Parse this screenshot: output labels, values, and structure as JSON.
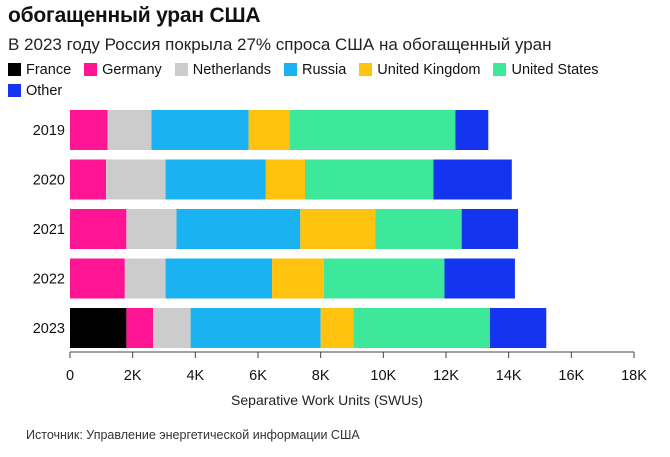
{
  "header": {
    "title": "обогащенный уран США",
    "subtitle": "В 2023 году Россия покрыла 27% спроса США на обогащенный уран"
  },
  "source": "Источник: Управление энергетической информации США",
  "chart_data": {
    "type": "bar",
    "orientation": "horizontal",
    "stacked": true,
    "categories": [
      "2019",
      "2020",
      "2021",
      "2022",
      "2023"
    ],
    "series": [
      {
        "name": "France",
        "color": "#000000",
        "values": [
          0,
          0,
          0,
          0,
          1800
        ]
      },
      {
        "name": "Germany",
        "color": "#ff1493",
        "values": [
          1200,
          1150,
          1800,
          1750,
          850
        ]
      },
      {
        "name": "Netherlands",
        "color": "#cccccc",
        "values": [
          1400,
          1900,
          1600,
          1300,
          1200
        ]
      },
      {
        "name": "Russia",
        "color": "#1ab2f0",
        "values": [
          3100,
          3200,
          3950,
          3400,
          4150
        ]
      },
      {
        "name": "United Kingdom",
        "color": "#ffc20e",
        "values": [
          1300,
          1250,
          2400,
          1650,
          1050
        ]
      },
      {
        "name": "United States",
        "color": "#3ee89a",
        "values": [
          5300,
          4100,
          2750,
          3850,
          4350
        ]
      },
      {
        "name": "Other",
        "color": "#1434f0",
        "values": [
          1050,
          2500,
          1800,
          2250,
          1800
        ]
      }
    ],
    "xlabel": "Separative Work Units (SWUs)",
    "ylabel": "",
    "xlim": [
      0,
      18000
    ],
    "xticks": [
      0,
      2000,
      4000,
      6000,
      8000,
      10000,
      12000,
      14000,
      16000,
      18000
    ],
    "xtick_labels": [
      "0",
      "2K",
      "4K",
      "6K",
      "8K",
      "10K",
      "12K",
      "14K",
      "16K",
      "18K"
    ],
    "grid": false,
    "legend_position": "top"
  }
}
